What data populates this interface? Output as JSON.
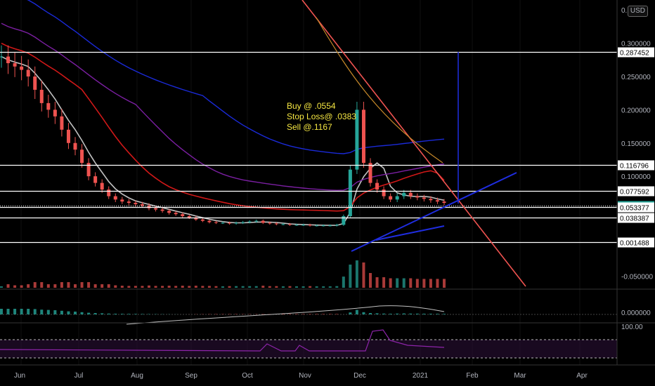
{
  "header": {
    "currency": "USD",
    "top_tick": "0.",
    "rsi_top": "100.00"
  },
  "chart_data": {
    "type": "candlestick",
    "symbol_currency": "USD",
    "x_ticks": [
      "Jun",
      "Jul",
      "Aug",
      "Sep",
      "Oct",
      "Nov",
      "Dec",
      "2021",
      "Feb",
      "Mar",
      "Apr"
    ],
    "y_ticks": [
      "0.300000",
      "0.250000",
      "0.200000",
      "0.150000",
      "0.100000",
      "-0.050000"
    ],
    "oscillator_tick": "0.000000",
    "ylim": [
      -0.06,
      0.31
    ],
    "horizontal_levels": [
      {
        "label": "0.287452",
        "value": 0.287452,
        "highlight": false
      },
      {
        "label": "0.116796",
        "value": 0.116796,
        "highlight": false
      },
      {
        "label": "0.077592",
        "value": 0.077592,
        "highlight": false
      },
      {
        "label": "0.055500",
        "value": 0.0555,
        "highlight": true,
        "dotted": true
      },
      {
        "label": "0.053377",
        "value": 0.053377,
        "highlight": false
      },
      {
        "label": "0.038387",
        "value": 0.038387,
        "highlight": false
      },
      {
        "label": "0.001488",
        "value": 0.001488,
        "highlight": false
      }
    ],
    "annotation": [
      "Buy @ .0554",
      "Stop Loss@ .0383",
      "Sell @.1167"
    ],
    "price_series_approx": [
      0.28,
      0.27,
      0.265,
      0.26,
      0.25,
      0.23,
      0.21,
      0.2,
      0.19,
      0.17,
      0.15,
      0.14,
      0.12,
      0.1,
      0.09,
      0.08,
      0.07,
      0.065,
      0.062,
      0.06,
      0.058,
      0.056,
      0.052,
      0.05,
      0.048,
      0.045,
      0.043,
      0.04,
      0.038,
      0.035,
      0.033,
      0.031,
      0.03,
      0.03,
      0.029,
      0.03,
      0.031,
      0.032,
      0.033,
      0.03,
      0.029,
      0.028,
      0.028,
      0.027,
      0.027,
      0.027,
      0.026,
      0.026,
      0.026,
      0.026,
      0.027,
      0.04,
      0.11,
      0.2,
      0.12,
      0.09,
      0.08,
      0.07,
      0.065,
      0.07,
      0.075,
      0.07,
      0.068,
      0.066,
      0.064,
      0.062,
      0.06
    ],
    "colors": {
      "up": "#26a69a",
      "down": "#ef5350",
      "ma_white": "#c0c0c0",
      "ma_red": "#d01818",
      "ma_purple": "#7b1fa2",
      "ma_blue": "#1a2ad8",
      "trend_red": "#ef5350",
      "trend_orange": "#c98a2a",
      "trend_blue": "#1f2de0",
      "rsi": "#8e24aa"
    }
  }
}
